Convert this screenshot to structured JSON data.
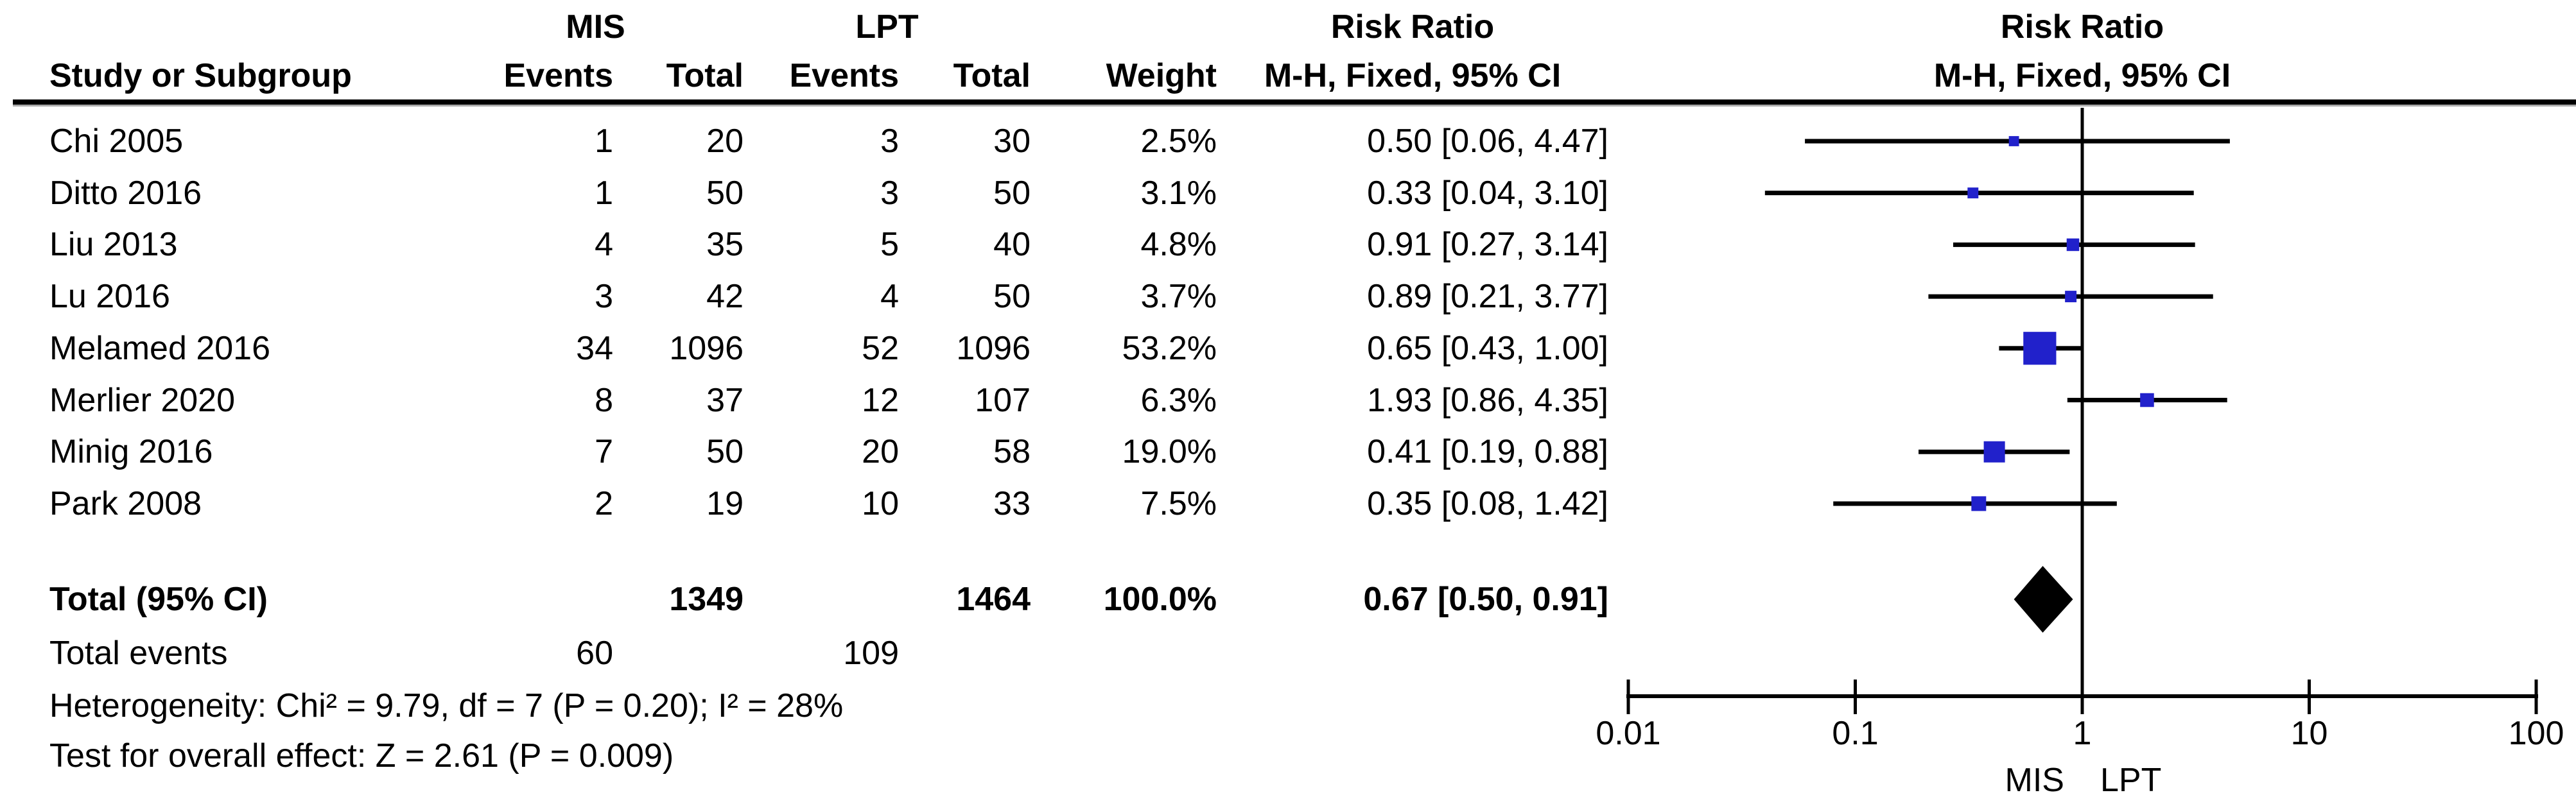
{
  "header": {
    "study_col": "Study or Subgroup",
    "group_mis": "MIS",
    "group_lpt": "LPT",
    "events": "Events",
    "total": "Total",
    "weight": "Weight",
    "risk_ratio": "Risk Ratio",
    "mh_fixed": "M-H, Fixed, 95% CI"
  },
  "colors": {
    "marker_blue": "#2121CB",
    "line_black": "#000000",
    "rule_shadow": "#aaaaaa"
  },
  "chart_data": {
    "type": "forest",
    "effect_measure": "Risk Ratio",
    "method": "M-H, Fixed, 95% CI",
    "x_scale": "log10",
    "x_range": [
      0.01,
      100
    ],
    "x_ticks": [
      0.01,
      0.1,
      1,
      10,
      100
    ],
    "x_tick_labels": [
      "0.01",
      "0.1",
      "1",
      "10",
      "100"
    ],
    "favours_left": "MIS",
    "favours_right": "LPT",
    "studies": [
      {
        "study": "Chi 2005",
        "mis_events": "1",
        "mis_total": "20",
        "lpt_events": "3",
        "lpt_total": "30",
        "weight": "2.5%",
        "weight_pct": 2.5,
        "rr": 0.5,
        "ci_low": 0.06,
        "ci_high": 4.47,
        "label": "0.50 [0.06, 4.47]"
      },
      {
        "study": "Ditto 2016",
        "mis_events": "1",
        "mis_total": "50",
        "lpt_events": "3",
        "lpt_total": "50",
        "weight": "3.1%",
        "weight_pct": 3.1,
        "rr": 0.33,
        "ci_low": 0.04,
        "ci_high": 3.1,
        "label": "0.33 [0.04, 3.10]"
      },
      {
        "study": "Liu 2013",
        "mis_events": "4",
        "mis_total": "35",
        "lpt_events": "5",
        "lpt_total": "40",
        "weight": "4.8%",
        "weight_pct": 4.8,
        "rr": 0.91,
        "ci_low": 0.27,
        "ci_high": 3.14,
        "label": "0.91 [0.27, 3.14]"
      },
      {
        "study": "Lu 2016",
        "mis_events": "3",
        "mis_total": "42",
        "lpt_events": "4",
        "lpt_total": "50",
        "weight": "3.7%",
        "weight_pct": 3.7,
        "rr": 0.89,
        "ci_low": 0.21,
        "ci_high": 3.77,
        "label": "0.89 [0.21, 3.77]"
      },
      {
        "study": "Melamed 2016",
        "mis_events": "34",
        "mis_total": "1096",
        "lpt_events": "52",
        "lpt_total": "1096",
        "weight": "53.2%",
        "weight_pct": 53.2,
        "rr": 0.65,
        "ci_low": 0.43,
        "ci_high": 1.0,
        "label": "0.65 [0.43, 1.00]"
      },
      {
        "study": "Merlier 2020",
        "mis_events": "8",
        "mis_total": "37",
        "lpt_events": "12",
        "lpt_total": "107",
        "weight": "6.3%",
        "weight_pct": 6.3,
        "rr": 1.93,
        "ci_low": 0.86,
        "ci_high": 4.35,
        "label": "1.93 [0.86, 4.35]"
      },
      {
        "study": "Minig 2016",
        "mis_events": "7",
        "mis_total": "50",
        "lpt_events": "20",
        "lpt_total": "58",
        "weight": "19.0%",
        "weight_pct": 19.0,
        "rr": 0.41,
        "ci_low": 0.19,
        "ci_high": 0.88,
        "label": "0.41 [0.19, 0.88]"
      },
      {
        "study": "Park 2008",
        "mis_events": "2",
        "mis_total": "19",
        "lpt_events": "10",
        "lpt_total": "33",
        "weight": "7.5%",
        "weight_pct": 7.5,
        "rr": 0.35,
        "ci_low": 0.08,
        "ci_high": 1.42,
        "label": "0.35 [0.08, 1.42]"
      }
    ],
    "overall": {
      "label": "Total (95% CI)",
      "mis_total": "1349",
      "lpt_total": "1464",
      "weight": "100.0%",
      "rr": 0.67,
      "ci_low": 0.5,
      "ci_high": 0.91,
      "text": "0.67 [0.50, 0.91]"
    },
    "total_events": {
      "label": "Total events",
      "mis": "60",
      "lpt": "109"
    },
    "heterogeneity": "Heterogeneity: Chi² = 9.79, df = 7 (P = 0.20); I² = 28%",
    "overall_effect": "Test for overall effect: Z = 2.61 (P = 0.009)"
  }
}
